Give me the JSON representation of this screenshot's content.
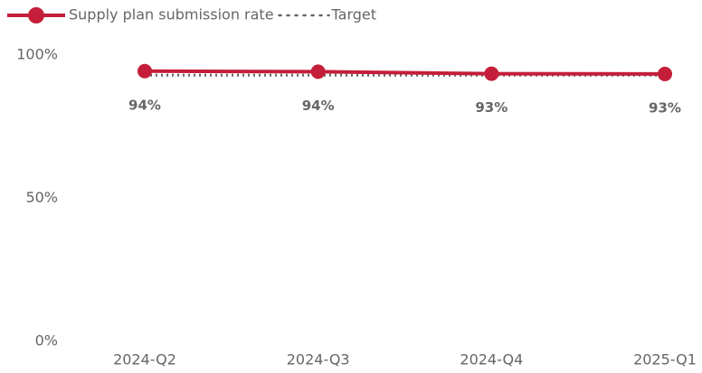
{
  "chart_data": {
    "type": "line",
    "categories": [
      "2024-Q2",
      "2024-Q3",
      "2024-Q4",
      "2025-Q1"
    ],
    "series": [
      {
        "name": "Supply plan submission rate",
        "color": "#c41e3a",
        "values": [
          94.4,
          94.2,
          93.5,
          93.4
        ],
        "value_labels": [
          "94%",
          "94%",
          "93%",
          "93%"
        ],
        "style": "solid",
        "markers": true
      },
      {
        "name": "Target",
        "color": "#666666",
        "values": [
          93,
          93,
          93,
          93
        ],
        "style": "dotted",
        "markers": false
      }
    ],
    "ylim": [
      0,
      100
    ],
    "yticks": [
      {
        "value": 0,
        "label": "0%"
      },
      {
        "value": 50,
        "label": "50%"
      },
      {
        "value": 100,
        "label": "100%"
      }
    ],
    "grid": false,
    "legend": "top-left"
  }
}
